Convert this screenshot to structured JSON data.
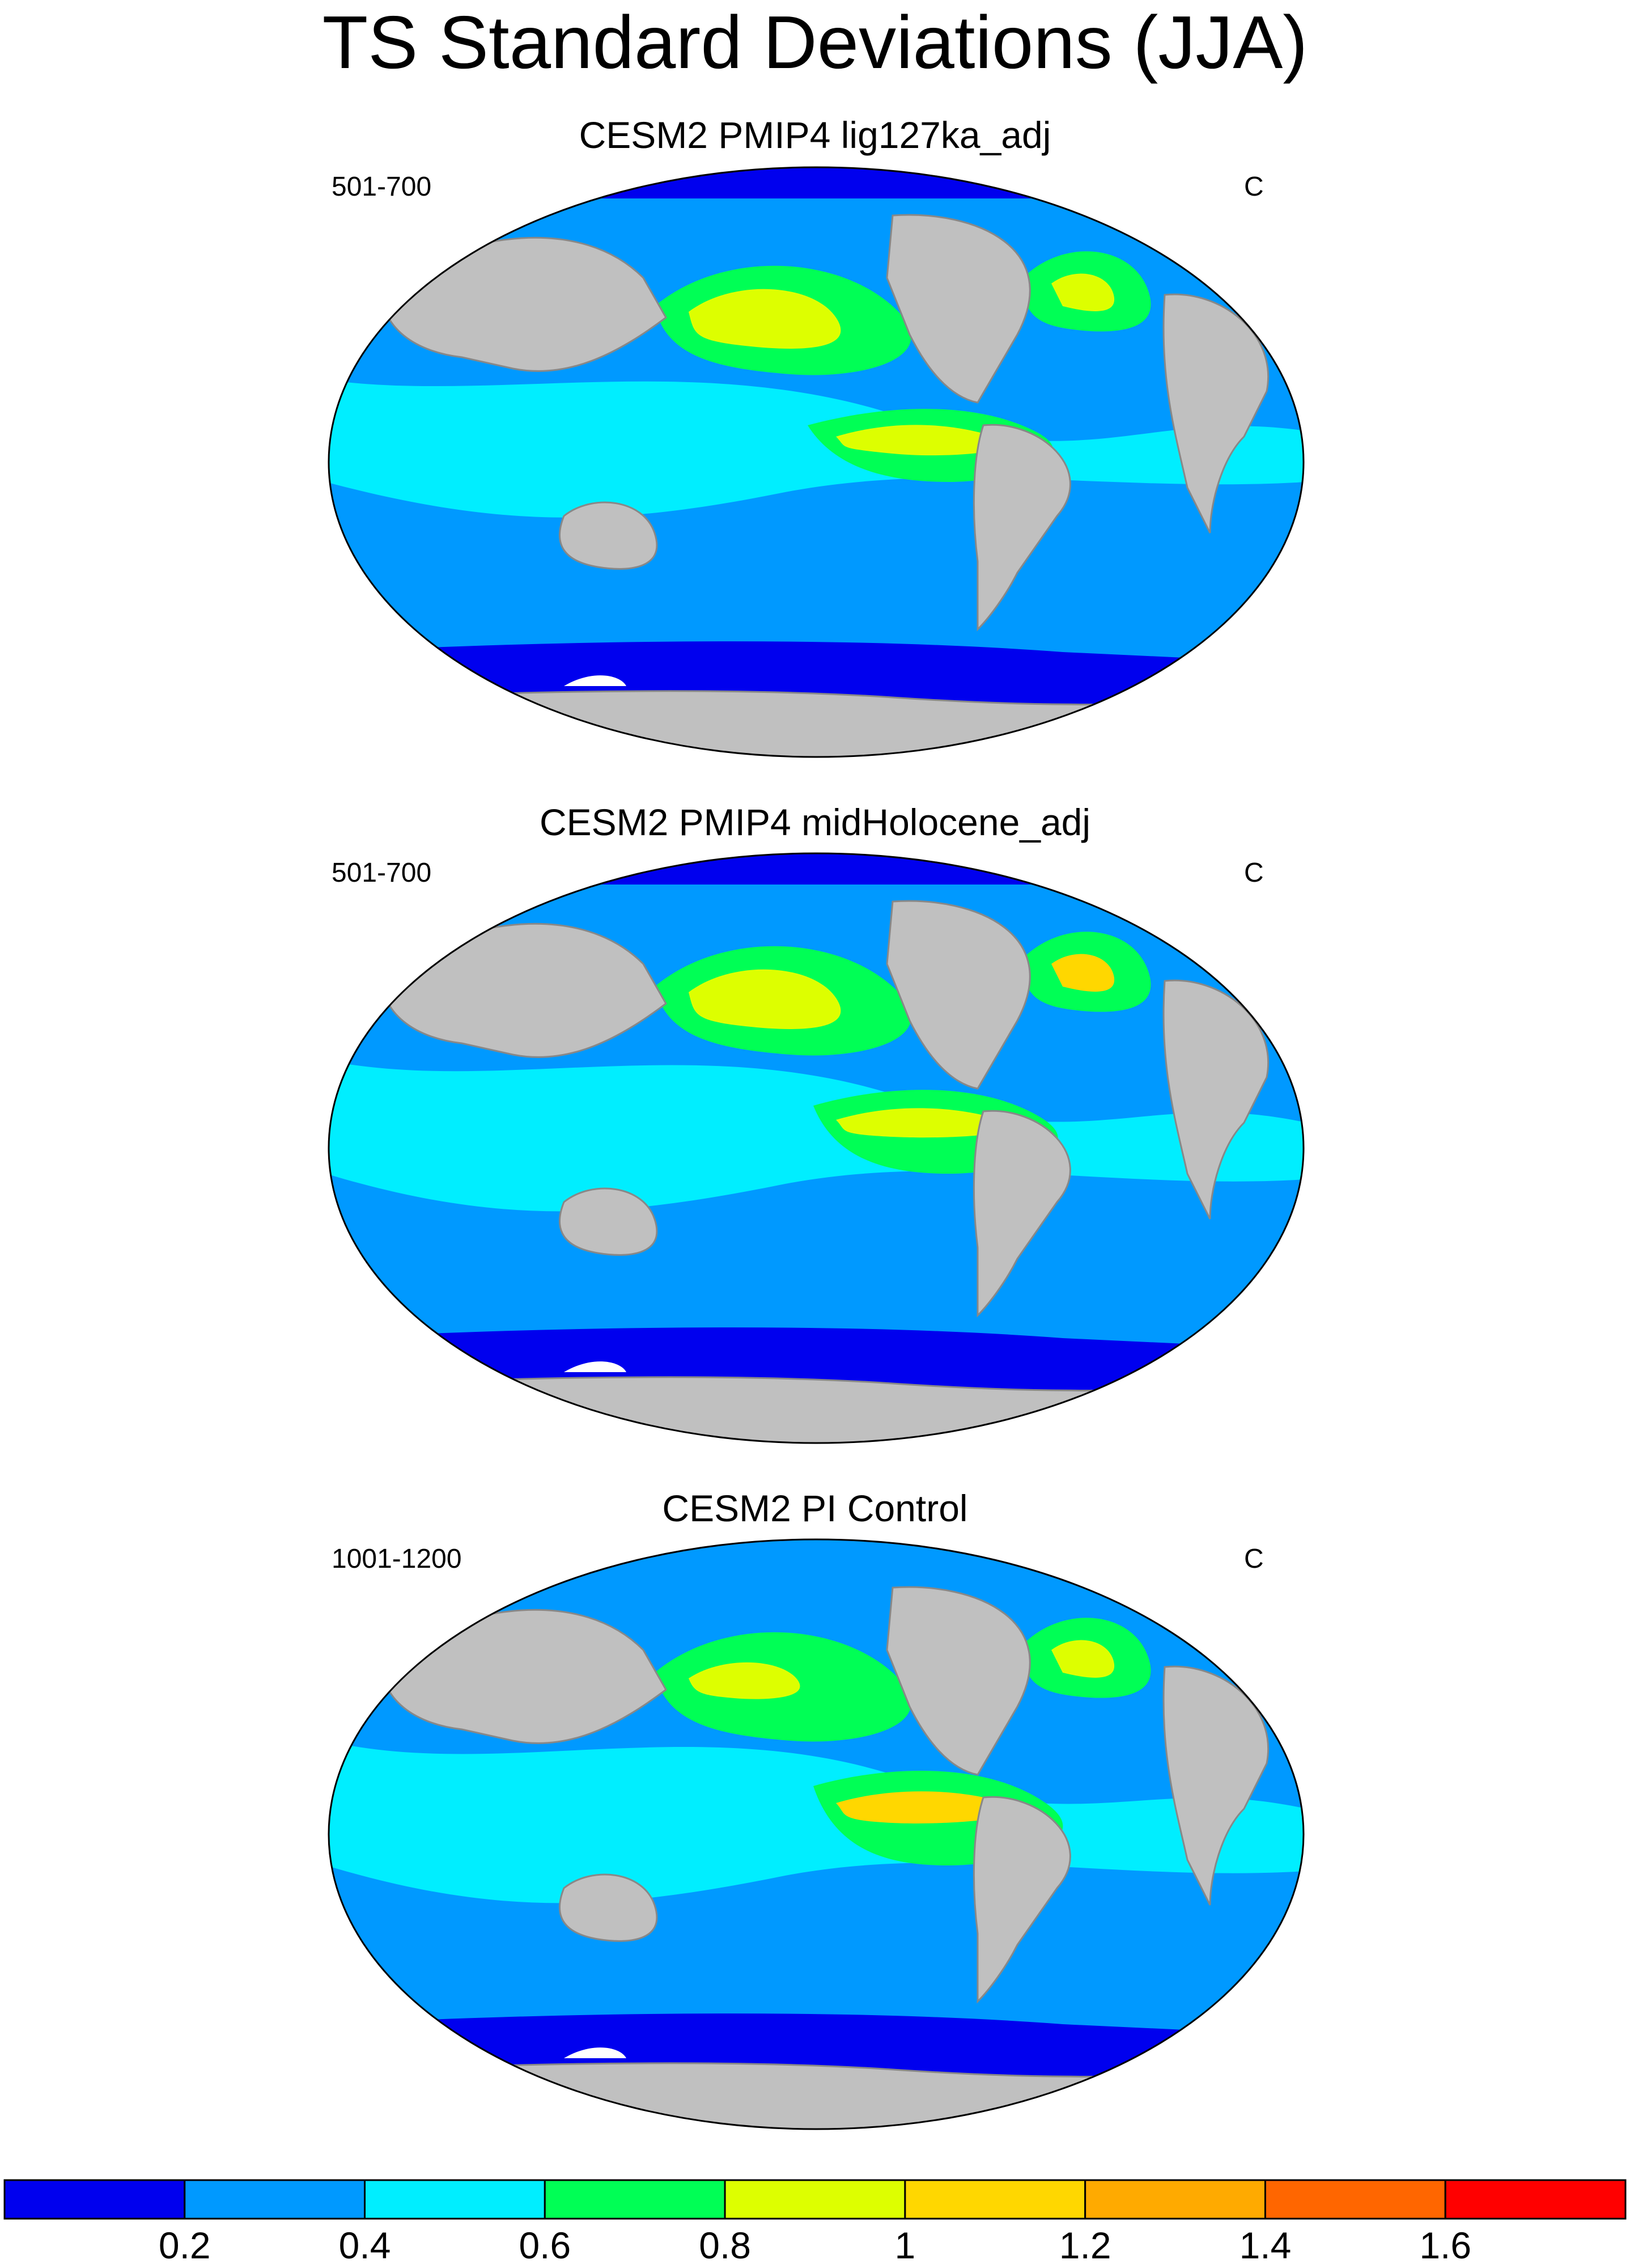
{
  "figure": {
    "title": "TS Standard Deviations (JJA)"
  },
  "panels": [
    {
      "title": "CESM2 PMIP4 lig127ka_adj",
      "left_label": "501-700",
      "right_label": "C"
    },
    {
      "title": "CESM2 PMIP4 midHolocene_adj",
      "left_label": "501-700",
      "right_label": "C"
    },
    {
      "title": "CESM2 PI Control",
      "left_label": "1001-1200",
      "right_label": "C"
    }
  ],
  "colorbar": {
    "colors": [
      "#0000ee",
      "#0099ff",
      "#00eeff",
      "#00ff55",
      "#ddff00",
      "#ffd700",
      "#ffaa00",
      "#ff6600",
      "#ff0000"
    ],
    "tick_labels": [
      "0.2",
      "0.4",
      "0.6",
      "0.8",
      "1",
      "1.2",
      "1.4",
      "1.6"
    ]
  },
  "colors": {
    "land": "#c0c0c0",
    "coast": "#888888",
    "ice_shelf": "#ffffff"
  }
}
